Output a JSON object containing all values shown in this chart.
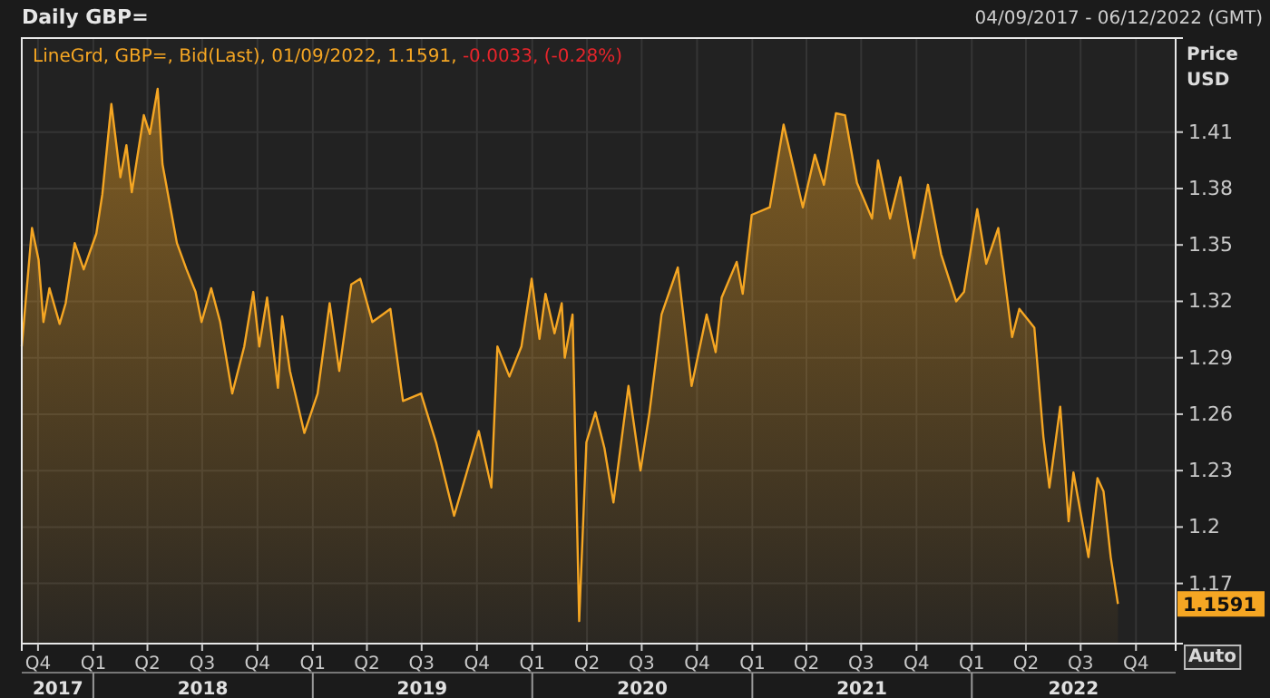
{
  "chart_data": {
    "type": "area",
    "title": "Daily GBP=",
    "subtitle": "04/09/2017 - 06/12/2022 (GMT)",
    "ylabel": "Price USD",
    "x": [
      "2017-09-04",
      "2017-09-21",
      "2017-10-02",
      "2017-10-10",
      "2017-10-20",
      "2017-11-06",
      "2017-11-16",
      "2017-12-01",
      "2017-12-16",
      "2018-01-06",
      "2018-01-16",
      "2018-01-31",
      "2018-02-15",
      "2018-02-25",
      "2018-03-06",
      "2018-03-26",
      "2018-04-05",
      "2018-04-18",
      "2018-04-26",
      "2018-05-20",
      "2018-06-05",
      "2018-06-20",
      "2018-06-30",
      "2018-07-16",
      "2018-07-31",
      "2018-08-20",
      "2018-09-09",
      "2018-09-24",
      "2018-10-04",
      "2018-10-17",
      "2018-11-04",
      "2018-11-11",
      "2018-11-24",
      "2018-12-18",
      "2019-01-09",
      "2019-01-29",
      "2019-02-14",
      "2019-03-06",
      "2019-03-21",
      "2019-04-10",
      "2019-05-10",
      "2019-05-31",
      "2019-06-30",
      "2019-07-25",
      "2019-08-24",
      "2019-09-14",
      "2019-10-04",
      "2019-10-25",
      "2019-11-04",
      "2019-11-24",
      "2019-12-14",
      "2019-12-31",
      "2020-01-13",
      "2020-01-23",
      "2020-02-07",
      "2020-02-19",
      "2020-02-24",
      "2020-03-08",
      "2020-03-19",
      "2020-03-31",
      "2020-04-15",
      "2020-04-30",
      "2020-05-15",
      "2020-06-09",
      "2020-06-29",
      "2020-07-14",
      "2020-08-03",
      "2020-08-30",
      "2020-09-22",
      "2020-10-17",
      "2020-11-01",
      "2020-11-11",
      "2020-12-06",
      "2020-12-16",
      "2020-12-31",
      "2021-01-30",
      "2021-02-22",
      "2021-03-26",
      "2021-04-15",
      "2021-04-30",
      "2021-05-20",
      "2021-06-04",
      "2021-06-24",
      "2021-07-19",
      "2021-07-29",
      "2021-08-18",
      "2021-09-04",
      "2021-09-27",
      "2021-10-20",
      "2021-11-11",
      "2021-12-06",
      "2021-12-19",
      "2022-01-10",
      "2022-01-25",
      "2022-02-14",
      "2022-03-09",
      "2022-03-21",
      "2022-04-15",
      "2022-04-30",
      "2022-05-10",
      "2022-05-28",
      "2022-06-11",
      "2022-06-19",
      "2022-07-14",
      "2022-07-29",
      "2022-08-08",
      "2022-08-20",
      "2022-09-01"
    ],
    "series": [
      {
        "name": "LineGrd, GBP=, Bid(Last), 01/09/2022, 1.1591,",
        "color": "#f5a623",
        "values": [
          1.296,
          1.359,
          1.342,
          1.309,
          1.327,
          1.308,
          1.319,
          1.351,
          1.337,
          1.356,
          1.377,
          1.425,
          1.386,
          1.403,
          1.378,
          1.419,
          1.409,
          1.433,
          1.393,
          1.351,
          1.337,
          1.325,
          1.309,
          1.327,
          1.309,
          1.271,
          1.296,
          1.325,
          1.296,
          1.322,
          1.274,
          1.312,
          1.283,
          1.25,
          1.271,
          1.319,
          1.283,
          1.329,
          1.332,
          1.309,
          1.316,
          1.267,
          1.271,
          1.245,
          1.206,
          1.229,
          1.251,
          1.221,
          1.296,
          1.28,
          1.296,
          1.332,
          1.3,
          1.324,
          1.303,
          1.319,
          1.29,
          1.313,
          1.15,
          1.245,
          1.261,
          1.242,
          1.213,
          1.275,
          1.23,
          1.261,
          1.313,
          1.338,
          1.275,
          1.313,
          1.293,
          1.322,
          1.341,
          1.324,
          1.366,
          1.37,
          1.414,
          1.37,
          1.398,
          1.382,
          1.42,
          1.419,
          1.383,
          1.364,
          1.395,
          1.364,
          1.386,
          1.343,
          1.382,
          1.345,
          1.32,
          1.325,
          1.369,
          1.34,
          1.359,
          1.301,
          1.316,
          1.306,
          1.248,
          1.221,
          1.264,
          1.203,
          1.229,
          1.184,
          1.226,
          1.219,
          1.184,
          1.1591
        ]
      }
    ],
    "xlim": [
      "2017-09-04",
      "2022-12-06"
    ],
    "xticks": [
      {
        "value": "2017-10-01",
        "label": "Q4"
      },
      {
        "value": "2018-01-01",
        "label": "Q1"
      },
      {
        "value": "2018-04-01",
        "label": "Q2"
      },
      {
        "value": "2018-07-01",
        "label": "Q3"
      },
      {
        "value": "2018-10-01",
        "label": "Q4"
      },
      {
        "value": "2019-01-01",
        "label": "Q1"
      },
      {
        "value": "2019-04-01",
        "label": "Q2"
      },
      {
        "value": "2019-07-01",
        "label": "Q3"
      },
      {
        "value": "2019-10-01",
        "label": "Q4"
      },
      {
        "value": "2020-01-01",
        "label": "Q1"
      },
      {
        "value": "2020-04-01",
        "label": "Q2"
      },
      {
        "value": "2020-07-01",
        "label": "Q3"
      },
      {
        "value": "2020-10-01",
        "label": "Q4"
      },
      {
        "value": "2021-01-01",
        "label": "Q1"
      },
      {
        "value": "2021-04-01",
        "label": "Q2"
      },
      {
        "value": "2021-07-01",
        "label": "Q3"
      },
      {
        "value": "2021-10-01",
        "label": "Q4"
      },
      {
        "value": "2022-01-01",
        "label": "Q1"
      },
      {
        "value": "2022-04-01",
        "label": "Q2"
      },
      {
        "value": "2022-07-01",
        "label": "Q3"
      },
      {
        "value": "2022-10-01",
        "label": "Q4"
      }
    ],
    "x2lim": [
      "2017-09-04",
      "2022-12-06"
    ],
    "x2ticks": [
      {
        "value": "2017-11-03",
        "label": "2017"
      },
      {
        "value": "2018-01-01",
        "label": null
      },
      {
        "value": "2018-07-02",
        "label": "2018"
      },
      {
        "value": "2019-01-01",
        "label": null
      },
      {
        "value": "2019-07-02",
        "label": "2019"
      },
      {
        "value": "2020-01-01",
        "label": null
      },
      {
        "value": "2020-07-02",
        "label": "2020"
      },
      {
        "value": "2021-01-01",
        "label": null
      },
      {
        "value": "2021-07-02",
        "label": "2021"
      },
      {
        "value": "2022-01-01",
        "label": null
      },
      {
        "value": "2022-06-19",
        "label": "2022"
      }
    ],
    "ylim": [
      1.138,
      1.46
    ],
    "yticks": [
      1.17,
      1.2,
      1.23,
      1.26,
      1.29,
      1.32,
      1.35,
      1.38,
      1.41
    ],
    "grid": true,
    "legend": "top left",
    "annotations": [
      "-0.0033, (-0.28%)",
      "Auto",
      "1.1591"
    ]
  }
}
